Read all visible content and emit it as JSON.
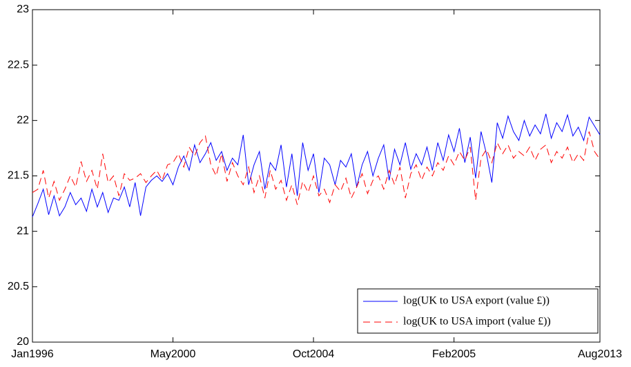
{
  "chart_data": {
    "type": "line",
    "categories": [
      "Jan1996",
      null,
      null,
      null,
      null,
      null,
      null,
      null,
      null,
      null,
      null,
      null,
      null,
      null,
      null,
      null,
      null,
      null,
      null,
      null,
      null,
      null,
      null,
      null,
      null,
      null,
      "May2000",
      null,
      null,
      null,
      null,
      null,
      null,
      null,
      null,
      null,
      null,
      null,
      null,
      null,
      null,
      null,
      null,
      null,
      null,
      null,
      null,
      null,
      null,
      null,
      null,
      null,
      "Oct2004",
      null,
      null,
      null,
      null,
      null,
      null,
      null,
      null,
      null,
      null,
      null,
      null,
      null,
      null,
      null,
      null,
      null,
      null,
      null,
      null,
      null,
      null,
      null,
      null,
      null,
      "Feb2005",
      null,
      null,
      null,
      null,
      null,
      null,
      null,
      null,
      null,
      null,
      null,
      null,
      null,
      null,
      null,
      null,
      null,
      null,
      null,
      null,
      null,
      null,
      null,
      null,
      null,
      null,
      "Aug2013"
    ],
    "series": [
      {
        "name": "log(UK to USA export (value £))",
        "color": "#0000ff",
        "dash": "solid",
        "values": [
          21.13,
          21.25,
          21.38,
          21.15,
          21.32,
          21.14,
          21.22,
          21.35,
          21.24,
          21.3,
          21.18,
          21.38,
          21.22,
          21.35,
          21.17,
          21.3,
          21.28,
          21.4,
          21.22,
          21.44,
          21.14,
          21.4,
          21.46,
          21.5,
          21.45,
          21.52,
          21.42,
          21.58,
          21.68,
          21.55,
          21.78,
          21.62,
          21.7,
          21.8,
          21.64,
          21.72,
          21.55,
          21.66,
          21.6,
          21.87,
          21.42,
          21.6,
          21.72,
          21.38,
          21.62,
          21.55,
          21.78,
          21.4,
          21.7,
          21.32,
          21.8,
          21.55,
          21.7,
          21.35,
          21.66,
          21.6,
          21.42,
          21.64,
          21.58,
          21.7,
          21.4,
          21.6,
          21.72,
          21.5,
          21.66,
          21.78,
          21.46,
          21.74,
          21.6,
          21.8,
          21.56,
          21.7,
          21.6,
          21.76,
          21.55,
          21.8,
          21.64,
          21.87,
          21.72,
          21.93,
          21.62,
          21.85,
          21.48,
          21.9,
          21.7,
          21.44,
          21.98,
          21.84,
          22.04,
          21.9,
          21.82,
          22.0,
          21.86,
          21.96,
          21.88,
          22.06,
          21.84,
          21.98,
          21.9,
          22.05,
          21.86,
          21.94,
          21.82,
          22.03,
          21.95,
          21.87
        ]
      },
      {
        "name": "log(UK to USA import (value £))",
        "color": "#ff0000",
        "dash": "dashed",
        "values": [
          21.35,
          21.38,
          21.55,
          21.3,
          21.45,
          21.28,
          21.38,
          21.5,
          21.4,
          21.63,
          21.45,
          21.55,
          21.38,
          21.7,
          21.44,
          21.5,
          21.32,
          21.52,
          21.46,
          21.48,
          21.52,
          21.44,
          21.5,
          21.55,
          21.46,
          21.6,
          21.62,
          21.7,
          21.58,
          21.76,
          21.68,
          21.8,
          21.86,
          21.6,
          21.5,
          21.7,
          21.45,
          21.62,
          21.5,
          21.42,
          21.58,
          21.35,
          21.5,
          21.3,
          21.55,
          21.38,
          21.46,
          21.28,
          21.42,
          21.24,
          21.45,
          21.35,
          21.5,
          21.32,
          21.38,
          21.26,
          21.42,
          21.36,
          21.48,
          21.3,
          21.4,
          21.52,
          21.34,
          21.46,
          21.5,
          21.38,
          21.55,
          21.42,
          21.58,
          21.3,
          21.52,
          21.6,
          21.46,
          21.58,
          21.5,
          21.62,
          21.55,
          21.68,
          21.6,
          21.72,
          21.64,
          21.76,
          21.28,
          21.66,
          21.74,
          21.62,
          21.8,
          21.7,
          21.78,
          21.66,
          21.72,
          21.68,
          21.76,
          21.64,
          21.74,
          21.78,
          21.62,
          21.72,
          21.66,
          21.76,
          21.62,
          21.7,
          21.64,
          21.9,
          21.72,
          21.65
        ]
      }
    ],
    "ylim": [
      20,
      23
    ],
    "yticks": [
      20,
      20.5,
      21,
      21.5,
      22,
      22.5,
      23
    ],
    "grid": false,
    "legend": "lower right"
  }
}
